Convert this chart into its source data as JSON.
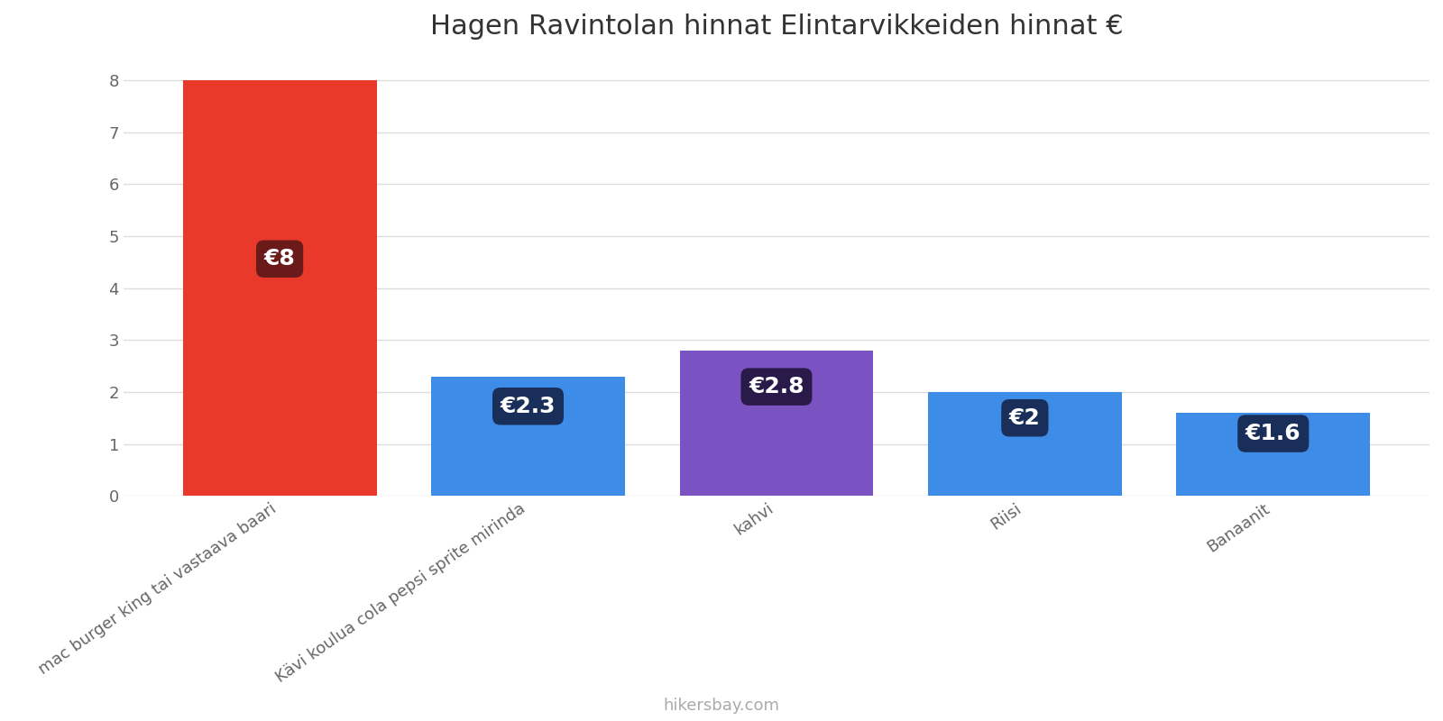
{
  "title": "Hagen Ravintolan hinnat Elintarvikkeiden hinnat €",
  "categories": [
    "mac burger king tai vastaava baari",
    "Kävi koulua cola pepsi sprite mirinda",
    "kahvi",
    "Riisi",
    "Banaanit"
  ],
  "values": [
    8,
    2.3,
    2.8,
    2,
    1.6
  ],
  "bar_colors": [
    "#e8392a",
    "#3d8de8",
    "#7b52c1",
    "#3d8de8",
    "#3d8de8"
  ],
  "label_texts": [
    "€8",
    "€2.3",
    "€2.8",
    "€2",
    "€1.6"
  ],
  "label_bg_colors": [
    "#6b1a1a",
    "#1a2e5a",
    "#2a1a4a",
    "#1a2e5a",
    "#1a2e5a"
  ],
  "label_text_color": "#ffffff",
  "ylim": [
    0,
    8.4
  ],
  "yticks": [
    0,
    1,
    2,
    3,
    4,
    5,
    6,
    7,
    8
  ],
  "watermark": "hikersbay.com",
  "watermark_color": "#aaaaaa",
  "bg_color": "#ffffff",
  "grid_color": "#dddddd",
  "title_fontsize": 22,
  "label_fontsize": 18,
  "tick_fontsize": 13,
  "watermark_fontsize": 13,
  "bar_width": 0.78
}
